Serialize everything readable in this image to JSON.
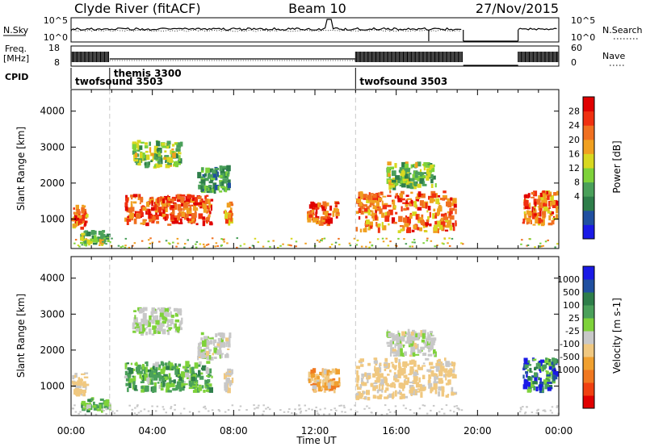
{
  "header": {
    "left_title": "Clyde River (fitACF)",
    "center_title": "Beam 10",
    "right_title": "27/Nov/2015"
  },
  "strips": {
    "nsky_label": "N.Sky",
    "nsky_ticks": [
      "10^5",
      "10^0"
    ],
    "nsearch_label": "N.Search",
    "nsearch_ticks": [
      "10^5",
      "10^0"
    ],
    "freq_label_1": "Freq.",
    "freq_label_2": "[MHz]",
    "freq_ticks": [
      "18",
      "8"
    ],
    "nave_label": "Nave",
    "nave_ticks": [
      "60",
      "0"
    ],
    "cpid_label": "CPID"
  },
  "cpid_segments": [
    {
      "label": "twofsound 3503",
      "start_hour": 0.0
    },
    {
      "label": "themis 3300",
      "start_hour": 1.9
    },
    {
      "label": "twofsound 3503",
      "start_hour": 14.0
    }
  ],
  "panels": {
    "y_label": "Slant Range [km]",
    "y_ticks": [
      "4000",
      "3000",
      "2000",
      "1000"
    ],
    "x_label": "Time UT",
    "x_ticks": [
      "00:00",
      "04:00",
      "08:00",
      "12:00",
      "16:00",
      "20:00",
      "00:00"
    ]
  },
  "power_bar": {
    "label": "Power [dB]",
    "ticks": [
      "28",
      "24",
      "20",
      "16",
      "12",
      "8",
      "4"
    ]
  },
  "velocity_bar": {
    "label": "Velocity [m s-1]",
    "ticks": [
      "1000",
      "500",
      "100",
      "25",
      "-25",
      "-100",
      "-500",
      "-1000"
    ]
  },
  "chart_data": [
    {
      "type": "heatmap",
      "title": "Power",
      "xlabel": "Time UT",
      "ylabel": "Slant Range [km]",
      "xlim_hours": [
        0,
        24
      ],
      "ylim_km": [
        180,
        4600
      ],
      "colorbar": {
        "label": "Power [dB]",
        "range": [
          0,
          32
        ],
        "colors": [
          "#1a1ae6",
          "#2050a0",
          "#2e7e4a",
          "#4aa05a",
          "#7ed23a",
          "#d8d820",
          "#f0a020",
          "#f07020",
          "#f03010",
          "#e00000"
        ]
      },
      "echo_regions": [
        {
          "t_start_h": 0.0,
          "t_end_h": 0.9,
          "r_min_km": 700,
          "r_max_km": 1400,
          "power_db": 24
        },
        {
          "t_start_h": 0.4,
          "t_end_h": 2.0,
          "r_min_km": 250,
          "r_max_km": 700,
          "power_db": 14
        },
        {
          "t_start_h": 2.6,
          "t_end_h": 7.0,
          "r_min_km": 800,
          "r_max_km": 1700,
          "power_db": 26
        },
        {
          "t_start_h": 3.0,
          "t_end_h": 5.5,
          "r_min_km": 2400,
          "r_max_km": 3200,
          "power_db": 14
        },
        {
          "t_start_h": 6.2,
          "t_end_h": 7.9,
          "r_min_km": 1700,
          "r_max_km": 2500,
          "power_db": 10
        },
        {
          "t_start_h": 7.5,
          "t_end_h": 8.0,
          "r_min_km": 800,
          "r_max_km": 1500,
          "power_db": 22
        },
        {
          "t_start_h": 11.6,
          "t_end_h": 13.3,
          "r_min_km": 800,
          "r_max_km": 1500,
          "power_db": 26
        },
        {
          "t_start_h": 14.0,
          "t_end_h": 19.0,
          "r_min_km": 600,
          "r_max_km": 1800,
          "power_db": 24
        },
        {
          "t_start_h": 15.5,
          "t_end_h": 18.0,
          "r_min_km": 1800,
          "r_max_km": 2600,
          "power_db": 14
        },
        {
          "t_start_h": 22.2,
          "t_end_h": 24.0,
          "r_min_km": 800,
          "r_max_km": 1800,
          "power_db": 24
        }
      ]
    },
    {
      "type": "heatmap",
      "title": "Velocity",
      "xlabel": "Time UT",
      "ylabel": "Slant Range [km]",
      "xlim_hours": [
        0,
        24
      ],
      "ylim_km": [
        180,
        4600
      ],
      "colorbar": {
        "label": "Velocity [m s-1]",
        "range": [
          -1000,
          1000
        ],
        "colors": [
          "#e00000",
          "#f04010",
          "#f07820",
          "#f0a030",
          "#f0c880",
          "#c8c8c8",
          "#7ed23a",
          "#4aa05a",
          "#2e7e4a",
          "#2050a0",
          "#1a1ae6"
        ]
      },
      "echo_regions": [
        {
          "t_start_h": 0.0,
          "t_end_h": 0.9,
          "r_min_km": 700,
          "r_max_km": 1400,
          "velocity": -150
        },
        {
          "t_start_h": 0.4,
          "t_end_h": 2.0,
          "r_min_km": 250,
          "r_max_km": 700,
          "velocity": 300
        },
        {
          "t_start_h": 2.6,
          "t_end_h": 7.0,
          "r_min_km": 800,
          "r_max_km": 1700,
          "velocity": 300
        },
        {
          "t_start_h": 3.0,
          "t_end_h": 5.5,
          "r_min_km": 2400,
          "r_max_km": 3200,
          "velocity": 60
        },
        {
          "t_start_h": 6.2,
          "t_end_h": 7.9,
          "r_min_km": 1700,
          "r_max_km": 2500,
          "velocity": 0
        },
        {
          "t_start_h": 7.5,
          "t_end_h": 8.0,
          "r_min_km": 800,
          "r_max_km": 1500,
          "velocity": -100
        },
        {
          "t_start_h": 11.6,
          "t_end_h": 13.3,
          "r_min_km": 800,
          "r_max_km": 1500,
          "velocity": -300
        },
        {
          "t_start_h": 14.0,
          "t_end_h": 19.0,
          "r_min_km": 600,
          "r_max_km": 1800,
          "velocity": -150
        },
        {
          "t_start_h": 15.5,
          "t_end_h": 18.0,
          "r_min_km": 1800,
          "r_max_km": 2600,
          "velocity": 20
        },
        {
          "t_start_h": 22.2,
          "t_end_h": 24.0,
          "r_min_km": 800,
          "r_max_km": 1800,
          "velocity": 600
        }
      ]
    }
  ]
}
